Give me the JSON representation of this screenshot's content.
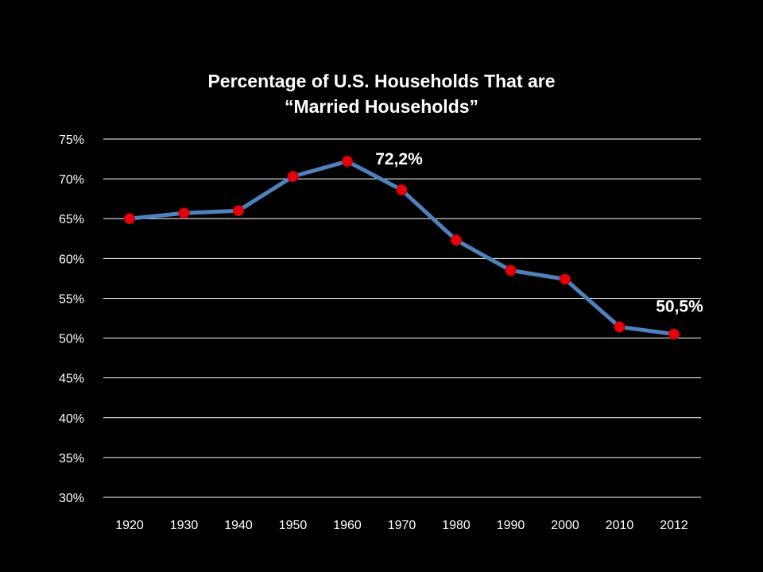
{
  "chart_data": {
    "type": "line",
    "title_lines": [
      "Percentage of U.S. Households That are",
      "“Married Households”"
    ],
    "categories": [
      "1920",
      "1930",
      "1940",
      "1950",
      "1960",
      "1970",
      "1980",
      "1990",
      "2000",
      "2010",
      "2012"
    ],
    "series": [
      {
        "values": [
          65.0,
          65.7,
          66.0,
          70.3,
          72.2,
          68.6,
          62.3,
          58.5,
          57.4,
          51.4,
          50.5
        ]
      }
    ],
    "y_ticks": [
      "30%",
      "35%",
      "40%",
      "45%",
      "50%",
      "55%",
      "60%",
      "65%",
      "70%",
      "75%"
    ],
    "ylim": [
      30,
      75
    ],
    "y_step": 5,
    "grid": true,
    "legend": "none",
    "annotations": [
      {
        "category": "1960",
        "text": "72,2%"
      },
      {
        "category": "2012",
        "text": "50,5%"
      }
    ],
    "colors": {
      "background": "#000000",
      "line": "#4f81bd",
      "marker_fill": "#e8000b",
      "marker_stroke": "#c00000",
      "grid": "#ffffff",
      "text": "#ffffff"
    }
  }
}
